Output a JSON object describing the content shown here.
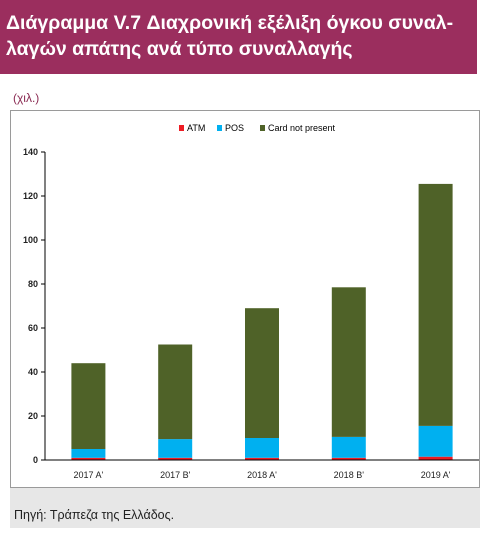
{
  "header": {
    "title": "Διάγραμμα V.7 Διαχρονική εξέλιξη όγκου συναλ-\nλαγών απάτης ανά τύπο συναλλαγής"
  },
  "chart_unit": "(χιλ.)",
  "footer": {
    "source": "Πηγή: Τράπεζα της Ελλάδος."
  },
  "colors": {
    "atm": "#ee1c24",
    "pos": "#00b0f0",
    "cnp": "#4f6228",
    "title_bg": "#9b2e5e"
  },
  "chart_data": {
    "type": "bar",
    "stacked": true,
    "categories": [
      "2017 A'",
      "2017 B'",
      "2018 A'",
      "2018 B'",
      "2019 A'"
    ],
    "series": [
      {
        "name": "ATM",
        "values": [
          1,
          1,
          1,
          1,
          1.5
        ]
      },
      {
        "name": "POS",
        "values": [
          4,
          8.5,
          9,
          9.5,
          14
        ]
      },
      {
        "name": "Card not present",
        "values": [
          39,
          43,
          59,
          68,
          110
        ]
      }
    ],
    "ylim": [
      0,
      140
    ],
    "yticks": [
      0,
      20,
      40,
      60,
      80,
      100,
      120,
      140
    ],
    "legend_position": "top-center",
    "grid": false
  }
}
